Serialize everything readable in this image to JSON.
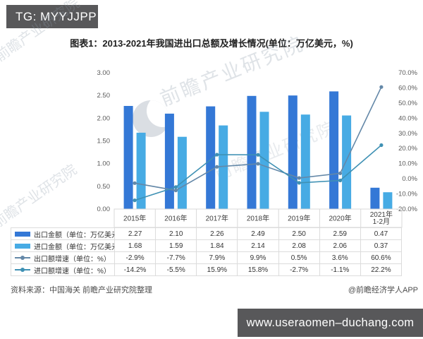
{
  "header": {
    "tag_label": "TG: MYYJJPP"
  },
  "title": "图表1：2013-2021年我国进出口总额及增长情况(单位：万亿美元，%)",
  "chart_data": {
    "type": "bar+line combo with data table",
    "title": "图表1：2013-2021年我国进出口总额及增长情况(单位：万亿美元，%)",
    "categories": [
      "2015年",
      "2016年",
      "2017年",
      "2018年",
      "2019年",
      "2020年",
      "2021年1-2月"
    ],
    "series": [
      {
        "name": "出口金额（单位：万亿美元）",
        "type": "bar",
        "axis": "left",
        "color": "#3478d6",
        "values": [
          2.27,
          2.1,
          2.26,
          2.49,
          2.5,
          2.59,
          0.47
        ],
        "display": [
          "2.27",
          "2.10",
          "2.26",
          "2.49",
          "2.50",
          "2.59",
          "0.47"
        ]
      },
      {
        "name": "进口金额（单位：万亿美元）",
        "type": "bar",
        "axis": "left",
        "color": "#47abe4",
        "values": [
          1.68,
          1.59,
          1.84,
          2.14,
          2.08,
          2.06,
          0.37
        ],
        "display": [
          "1.68",
          "1.59",
          "1.84",
          "2.14",
          "2.08",
          "2.06",
          "0.37"
        ]
      },
      {
        "name": "出口额增速（单位：%）",
        "type": "line",
        "axis": "right",
        "color": "#6488a8",
        "values": [
          -2.9,
          -7.7,
          7.9,
          9.9,
          0.5,
          3.6,
          60.6
        ],
        "display": [
          "-2.9%",
          "-7.7%",
          "7.9%",
          "9.9%",
          "0.5%",
          "3.6%",
          "60.6%"
        ]
      },
      {
        "name": "进口额增速（单位：%）",
        "type": "line",
        "axis": "right",
        "color": "#3f91b4",
        "values": [
          -14.2,
          -5.5,
          15.9,
          15.8,
          -2.7,
          -1.1,
          22.2
        ],
        "display": [
          "-14.2%",
          "-5.5%",
          "15.9%",
          "15.8%",
          "-2.7%",
          "-1.1%",
          "22.2%"
        ]
      }
    ],
    "left_axis": {
      "min": 0,
      "max": 3,
      "ticks": [
        "3.00",
        "2.50",
        "2.00",
        "1.50",
        "1.00",
        "0.50",
        "0.00"
      ]
    },
    "right_axis": {
      "min": -20,
      "max": 70,
      "ticks": [
        "70.0%",
        "60.0%",
        "50.0%",
        "40.0%",
        "30.0%",
        "20.0%",
        "10.0%",
        "0.0%",
        "-10.0%",
        "-20.0%"
      ]
    },
    "legend_position": "table-left",
    "grid": false
  },
  "watermark": {
    "diagonal_text": "前瞻产业研究院"
  },
  "source_note": "资料来源：中国海关 前瞻产业研究院整理",
  "credit": "@前瞻经济学人APP",
  "footer": {
    "watermark_url": "www.useraomen–duchang.com"
  },
  "colors": {
    "chip_bg": "#58585a",
    "footer_bg": "#58585a",
    "export_bar": "#3478d6",
    "import_bar": "#47abe4",
    "export_line": "#6488a8",
    "import_line": "#3f91b4"
  }
}
